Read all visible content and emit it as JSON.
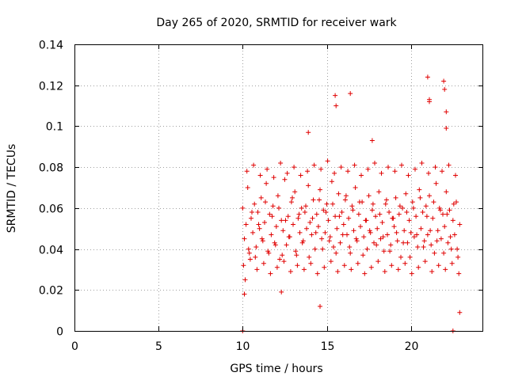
{
  "chart_data": {
    "type": "scatter",
    "title": "Day 265 of 2020, SRMTID for receiver wark",
    "xlabel": "GPS time / hours",
    "ylabel": "SRMTID / TECUs",
    "xlim": [
      0,
      24.3
    ],
    "ylim": [
      0,
      0.14
    ],
    "xticks": [
      0,
      5,
      10,
      15,
      20
    ],
    "xtick_labels": [
      "0",
      "5",
      "10",
      "15",
      "20"
    ],
    "yticks": [
      0,
      0.02,
      0.04,
      0.06,
      0.08,
      0.1,
      0.12,
      0.14
    ],
    "ytick_labels": [
      "0",
      "0.02",
      "0.04",
      "0.06",
      "0.08",
      "0.1",
      "0.12",
      "0.14"
    ],
    "grid": true,
    "marker": "+",
    "color": "#e00000",
    "series": [
      {
        "name": "SRMTID",
        "x": [
          10.0,
          10.1,
          10.2,
          10.3,
          10.4,
          10.5,
          10.6,
          10.7,
          10.8,
          10.9,
          11.0,
          11.1,
          11.2,
          11.3,
          11.4,
          11.5,
          11.6,
          11.7,
          11.8,
          11.9,
          12.0,
          12.1,
          12.2,
          12.3,
          12.4,
          12.5,
          12.6,
          12.7,
          12.8,
          12.9,
          13.0,
          13.1,
          13.2,
          13.3,
          13.4,
          13.5,
          13.6,
          13.7,
          13.8,
          13.9,
          14.0,
          14.1,
          14.2,
          14.3,
          14.4,
          14.5,
          14.6,
          14.7,
          14.8,
          14.9,
          15.0,
          15.1,
          15.2,
          15.3,
          15.4,
          15.5,
          15.6,
          15.7,
          15.8,
          15.9,
          16.0,
          16.1,
          16.2,
          16.3,
          16.4,
          16.5,
          16.6,
          16.7,
          16.8,
          16.9,
          17.0,
          17.1,
          17.2,
          17.3,
          17.4,
          17.5,
          17.6,
          17.7,
          17.8,
          17.9,
          18.0,
          18.1,
          18.2,
          18.3,
          18.4,
          18.5,
          18.6,
          18.7,
          18.8,
          18.9,
          19.0,
          19.1,
          19.2,
          19.3,
          19.4,
          19.5,
          19.6,
          19.7,
          19.8,
          19.9,
          20.0,
          20.1,
          20.2,
          20.3,
          20.4,
          20.5,
          20.6,
          20.7,
          20.8,
          20.9,
          21.0,
          21.1,
          21.2,
          21.3,
          21.4,
          21.5,
          21.6,
          21.7,
          21.8,
          21.9,
          22.0,
          22.1,
          22.2,
          22.3,
          22.4,
          22.5,
          22.6,
          22.7,
          22.8,
          22.9,
          10.05,
          10.25,
          10.45,
          10.65,
          10.85,
          11.05,
          11.25,
          11.45,
          11.65,
          11.85,
          12.05,
          12.25,
          12.45,
          12.65,
          12.85,
          13.05,
          13.25,
          13.45,
          13.65,
          13.85,
          14.05,
          14.25,
          14.45,
          14.65,
          14.85,
          15.05,
          15.25,
          15.45,
          15.65,
          15.85,
          16.05,
          16.25,
          16.45,
          16.65,
          16.85,
          17.05,
          17.25,
          17.45,
          17.65,
          17.85,
          18.05,
          18.25,
          18.45,
          18.65,
          18.85,
          19.05,
          19.25,
          19.45,
          19.65,
          19.85,
          20.05,
          20.25,
          20.45,
          20.65,
          20.85,
          21.05,
          21.25,
          21.45,
          21.65,
          21.85,
          22.05,
          22.25,
          22.45,
          22.65,
          22.85,
          10.15,
          10.35,
          10.55,
          10.75,
          10.95,
          11.15,
          11.35,
          11.55,
          11.75,
          11.95,
          12.15,
          12.35,
          12.55,
          12.75,
          12.95,
          13.15,
          13.35,
          13.55,
          13.75,
          13.95,
          14.15,
          14.35,
          14.55,
          14.75,
          14.95,
          15.15,
          15.35,
          15.55,
          15.75,
          15.95,
          16.15,
          16.35,
          16.55,
          16.75,
          16.95,
          17.15,
          17.35,
          17.55,
          17.75,
          17.95,
          18.15,
          18.35,
          18.55,
          18.75,
          18.95,
          19.15,
          19.35,
          19.55,
          19.75,
          19.95,
          20.15,
          20.35,
          20.55,
          20.75,
          20.95,
          21.15,
          21.35,
          21.55,
          21.75,
          21.95,
          22.15,
          22.35,
          22.55,
          22.75,
          15.5,
          15.55,
          16.4,
          17.7,
          21.0,
          21.1,
          21.1,
          21.95,
          22.0,
          22.1,
          22.1,
          13.9,
          12.3,
          10.1,
          14.6,
          22.9,
          10.0,
          22.5
        ],
        "y": [
          0.06,
          0.045,
          0.052,
          0.07,
          0.038,
          0.055,
          0.048,
          0.062,
          0.041,
          0.058,
          0.05,
          0.065,
          0.044,
          0.053,
          0.072,
          0.039,
          0.057,
          0.047,
          0.061,
          0.043,
          0.051,
          0.066,
          0.035,
          0.054,
          0.049,
          0.074,
          0.042,
          0.056,
          0.046,
          0.063,
          0.052,
          0.068,
          0.037,
          0.055,
          0.048,
          0.06,
          0.044,
          0.058,
          0.05,
          0.071,
          0.053,
          0.047,
          0.064,
          0.04,
          0.057,
          0.051,
          0.069,
          0.045,
          0.059,
          0.048,
          0.062,
          0.054,
          0.046,
          0.073,
          0.041,
          0.056,
          0.05,
          0.067,
          0.043,
          0.058,
          0.052,
          0.064,
          0.047,
          0.055,
          0.038,
          0.061,
          0.049,
          0.07,
          0.044,
          0.057,
          0.051,
          0.063,
          0.046,
          0.054,
          0.04,
          0.066,
          0.048,
          0.059,
          0.043,
          0.056,
          0.05,
          0.068,
          0.045,
          0.053,
          0.039,
          0.062,
          0.047,
          0.058,
          0.042,
          0.055,
          0.051,
          0.065,
          0.044,
          0.057,
          0.036,
          0.06,
          0.049,
          0.067,
          0.043,
          0.054,
          0.048,
          0.063,
          0.046,
          0.056,
          0.041,
          0.069,
          0.05,
          0.058,
          0.044,
          0.061,
          0.047,
          0.066,
          0.042,
          0.055,
          0.038,
          0.072,
          0.049,
          0.06,
          0.045,
          0.057,
          0.051,
          0.068,
          0.043,
          0.059,
          0.04,
          0.054,
          0.047,
          0.063,
          0.036,
          0.052,
          0.032,
          0.078,
          0.035,
          0.081,
          0.03,
          0.076,
          0.033,
          0.079,
          0.028,
          0.075,
          0.031,
          0.082,
          0.034,
          0.077,
          0.029,
          0.08,
          0.032,
          0.076,
          0.03,
          0.078,
          0.033,
          0.081,
          0.028,
          0.079,
          0.031,
          0.083,
          0.034,
          0.077,
          0.029,
          0.08,
          0.032,
          0.078,
          0.03,
          0.081,
          0.033,
          0.076,
          0.028,
          0.079,
          0.031,
          0.082,
          0.034,
          0.077,
          0.029,
          0.08,
          0.032,
          0.078,
          0.03,
          0.081,
          0.033,
          0.076,
          0.028,
          0.079,
          0.031,
          0.082,
          0.034,
          0.077,
          0.029,
          0.08,
          0.032,
          0.078,
          0.03,
          0.081,
          0.033,
          0.076,
          0.028,
          0.025,
          0.04,
          0.058,
          0.036,
          0.052,
          0.045,
          0.063,
          0.038,
          0.056,
          0.042,
          0.06,
          0.037,
          0.054,
          0.046,
          0.065,
          0.039,
          0.057,
          0.043,
          0.061,
          0.036,
          0.055,
          0.048,
          0.064,
          0.04,
          0.058,
          0.044,
          0.062,
          0.038,
          0.056,
          0.047,
          0.066,
          0.041,
          0.059,
          0.045,
          0.063,
          0.037,
          0.054,
          0.049,
          0.062,
          0.042,
          0.057,
          0.046,
          0.064,
          0.039,
          0.055,
          0.048,
          0.061,
          0.043,
          0.058,
          0.036,
          0.06,
          0.047,
          0.065,
          0.041,
          0.056,
          0.049,
          0.063,
          0.044,
          0.059,
          0.038,
          0.057,
          0.046,
          0.062,
          0.04,
          0.115,
          0.11,
          0.116,
          0.093,
          0.124,
          0.112,
          0.113,
          0.122,
          0.118,
          0.107,
          0.099,
          0.097,
          0.019,
          0.018,
          0.012,
          0.009,
          0.0,
          0.0
        ]
      }
    ]
  }
}
